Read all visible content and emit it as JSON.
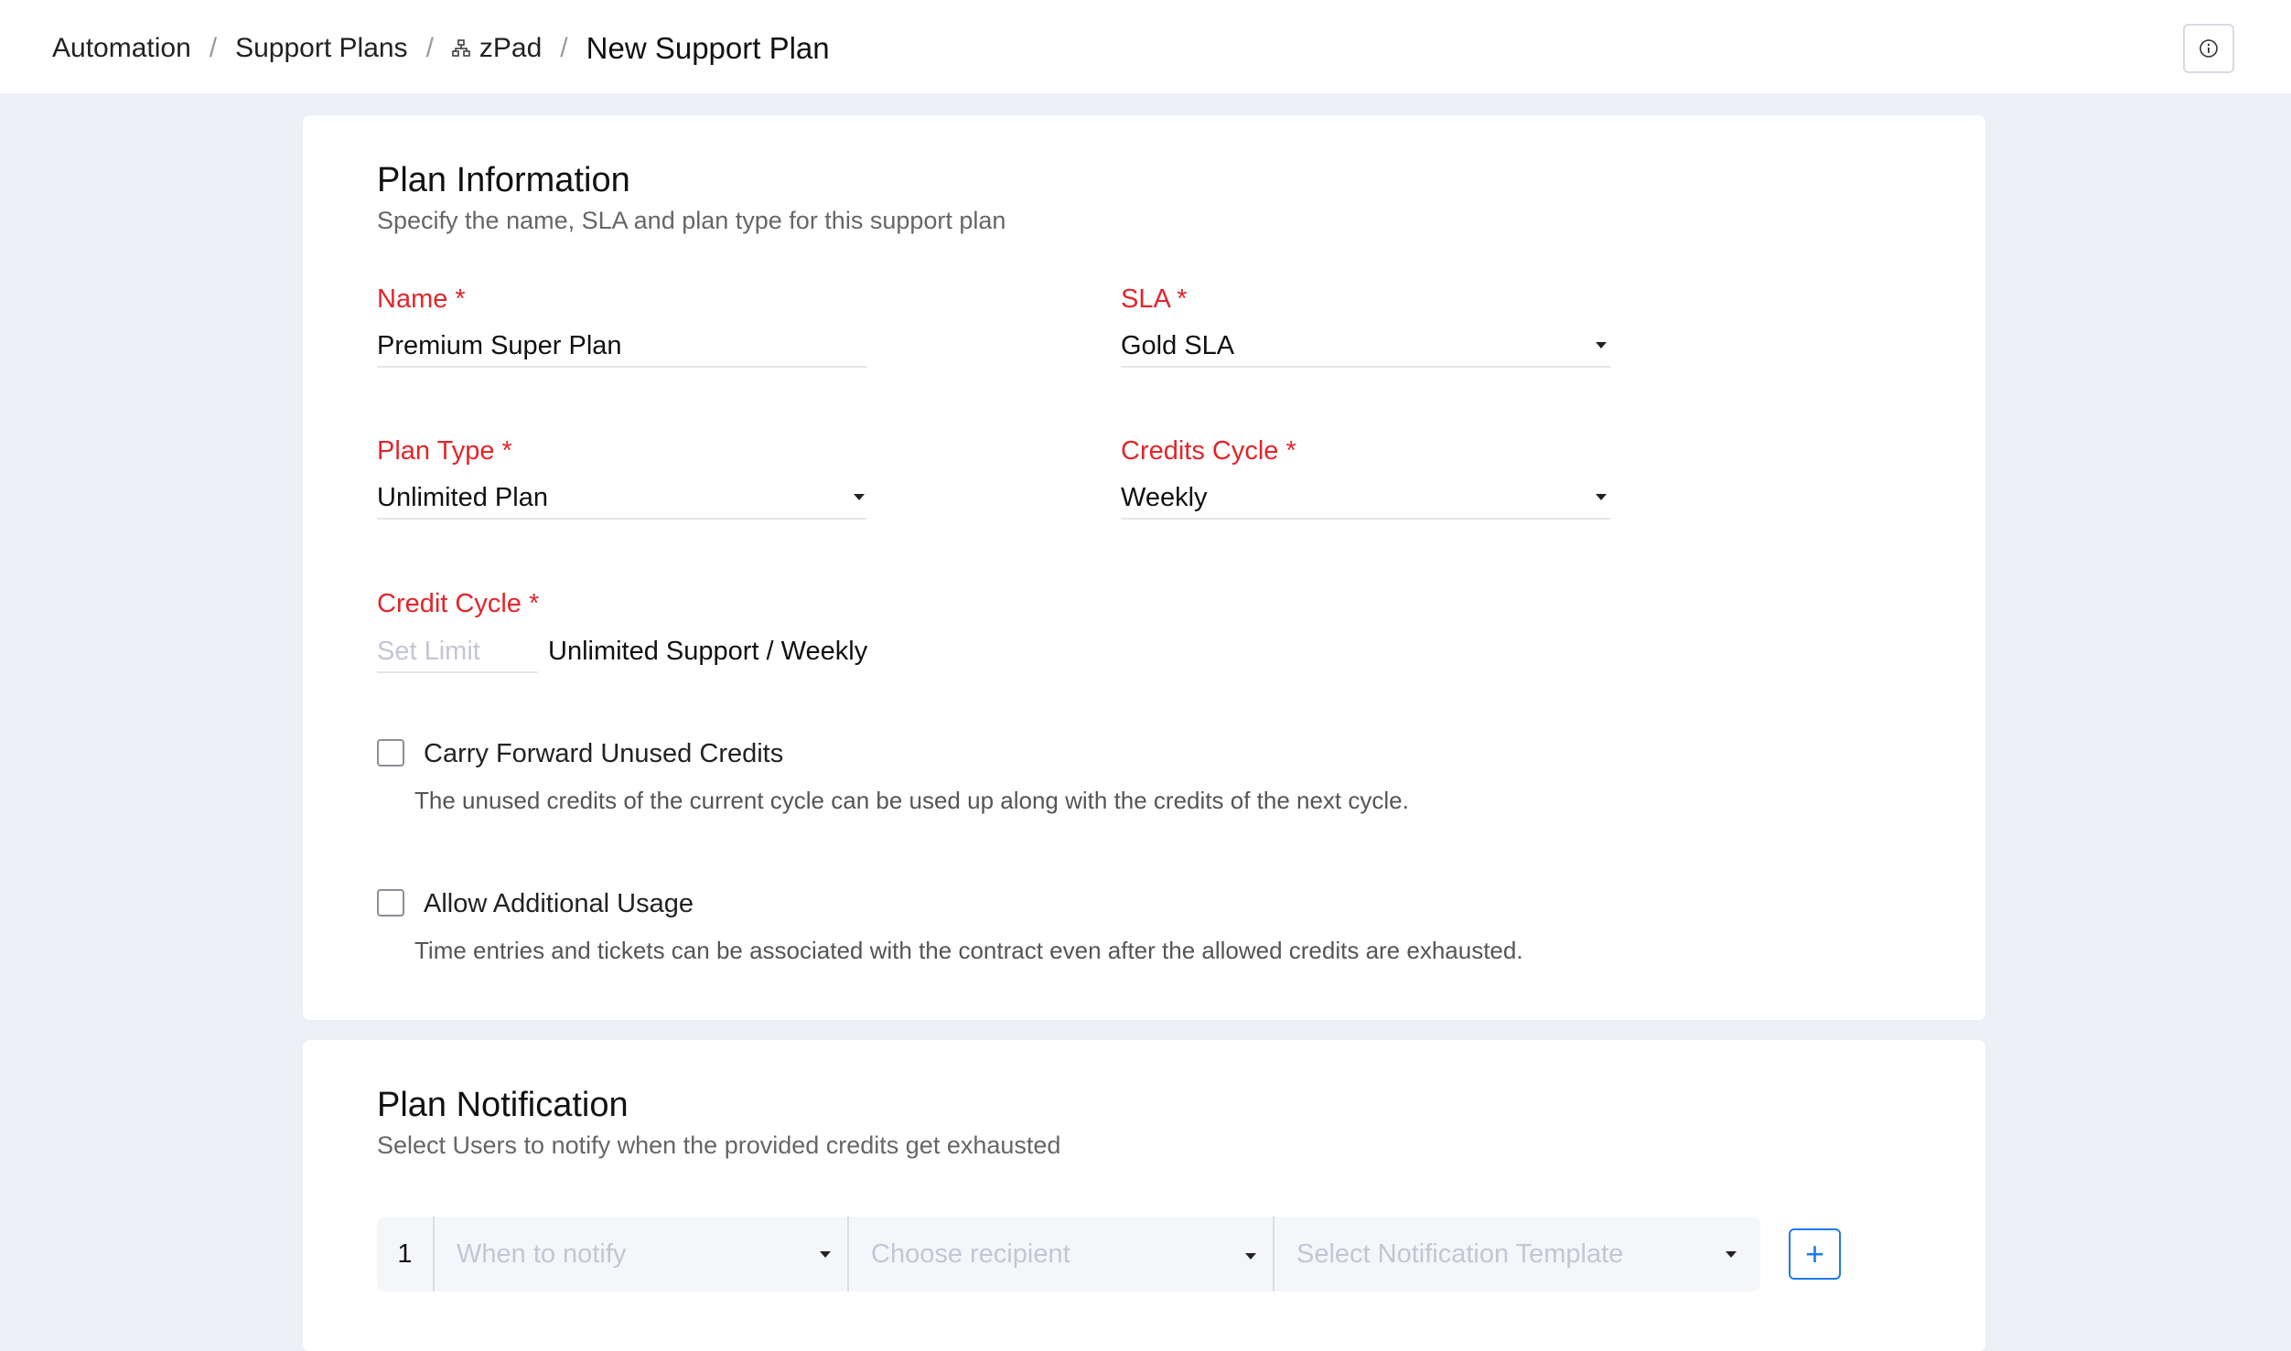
{
  "breadcrumb": {
    "items": [
      "Automation",
      "Support Plans",
      "zPad"
    ],
    "current": "New Support Plan",
    "separator": "/"
  },
  "plan_info": {
    "title": "Plan Information",
    "subtitle": "Specify the name, SLA and plan type for this support plan",
    "name": {
      "label": "Name",
      "required": "*",
      "value": "Premium Super Plan"
    },
    "sla": {
      "label": "SLA",
      "required": "*",
      "value": "Gold SLA"
    },
    "plan_type": {
      "label": "Plan Type",
      "required": "*",
      "value": "Unlimited Plan"
    },
    "credits_cycle": {
      "label": "Credits Cycle",
      "required": "*",
      "value": "Weekly"
    },
    "credit_cycle": {
      "label": "Credit Cycle",
      "required": "*",
      "placeholder": "Set Limit",
      "value": "Unlimited Support / Weekly"
    },
    "carry_forward": {
      "label": "Carry Forward Unused Credits",
      "checked": false,
      "description": "The unused credits of the current cycle can be used up along with the credits of the next cycle."
    },
    "additional_usage": {
      "label": "Allow Additional Usage",
      "checked": false,
      "description": "Time entries and tickets can be associated with the contract even after the allowed credits are exhausted."
    }
  },
  "plan_notification": {
    "title": "Plan Notification",
    "subtitle": "Select Users to notify when the provided credits get exhausted",
    "rows": [
      {
        "index": "1",
        "when": "When to notify",
        "recipient": "Choose recipient",
        "template": "Select Notification Template"
      }
    ],
    "add_label": "+"
  },
  "colors": {
    "required": "#e0262b",
    "accent": "#1e7be8"
  }
}
